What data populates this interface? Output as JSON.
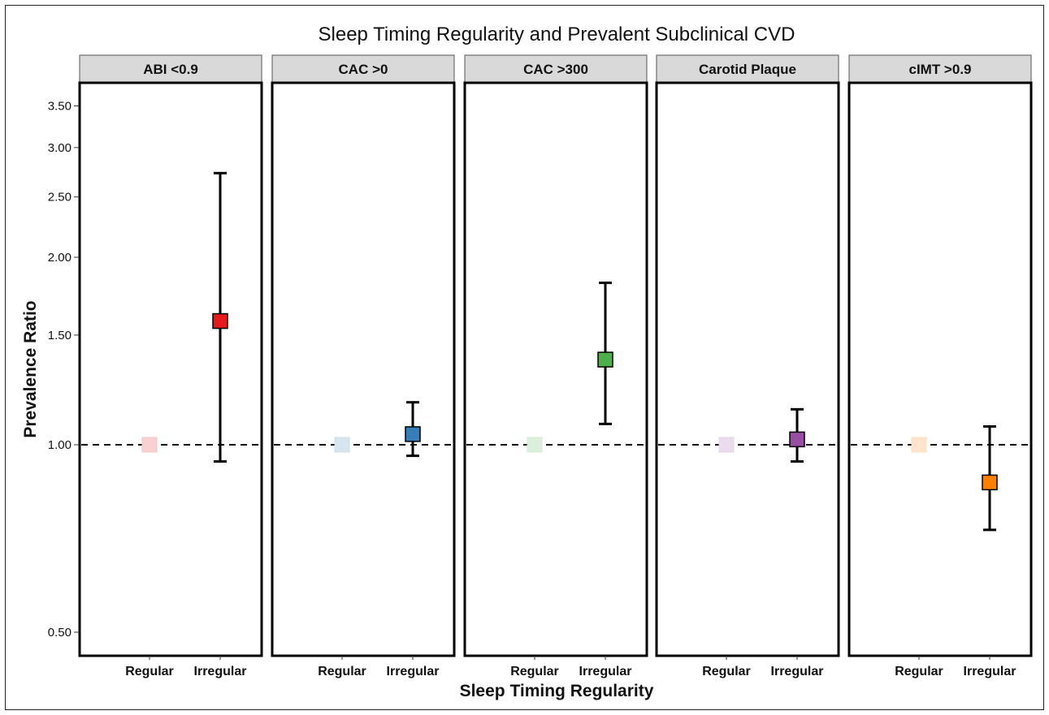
{
  "chart_data": {
    "type": "scatter",
    "title": "Sleep Timing Regularity and Prevalent Subclinical CVD",
    "xlabel": "Sleep Timing Regularity",
    "ylabel": "Prevalence Ratio",
    "y_scale": "log",
    "ylim": [
      0.47,
      3.9
    ],
    "y_ticks": [
      0.5,
      1.0,
      1.5,
      2.0,
      2.5,
      3.0,
      3.5
    ],
    "y_tick_labels": [
      "0.50",
      "1.00",
      "1.50",
      "2.00",
      "2.50",
      "3.00",
      "3.50"
    ],
    "categories": [
      "Regular",
      "Irregular"
    ],
    "reference_line": 1.0,
    "grid": false,
    "panels": [
      {
        "name": "ABI <0.9",
        "color": "#e41a1c",
        "reference": 1.0,
        "estimate": 1.58,
        "lower": 0.94,
        "upper": 2.73
      },
      {
        "name": "CAC >0",
        "color": "#377eb8",
        "reference": 1.0,
        "estimate": 1.04,
        "lower": 0.96,
        "upper": 1.17
      },
      {
        "name": "CAC >300",
        "color": "#4daf4a",
        "reference": 1.0,
        "estimate": 1.37,
        "lower": 1.08,
        "upper": 1.82
      },
      {
        "name": "Carotid Plaque",
        "color": "#984ea3",
        "reference": 1.0,
        "estimate": 1.02,
        "lower": 0.94,
        "upper": 1.14
      },
      {
        "name": "cIMT >0.9",
        "color": "#ff7f00",
        "reference": 1.0,
        "estimate": 0.87,
        "lower": 0.73,
        "upper": 1.07
      }
    ]
  }
}
